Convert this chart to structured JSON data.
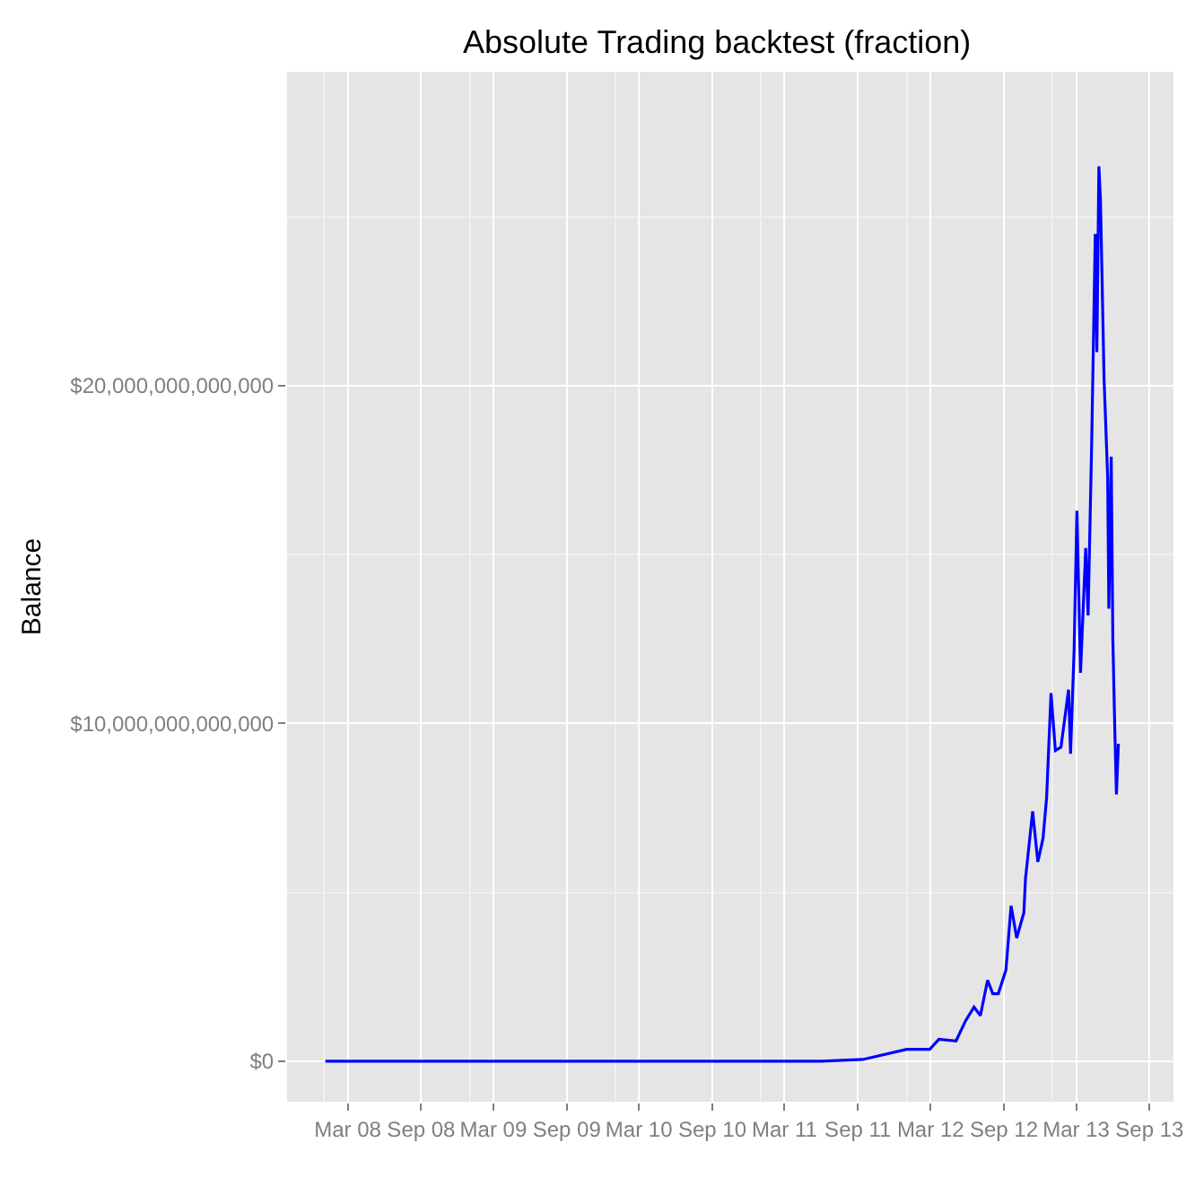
{
  "chart_data": {
    "type": "line",
    "title": "Absolute Trading backtest (fraction)",
    "ylabel": "Balance",
    "x": [
      "2008-01-05",
      "2009-06-01",
      "2011-06-01",
      "2011-09-13",
      "2012-01-01",
      "2012-02-28",
      "2012-03-22",
      "2012-05-04",
      "2012-05-28",
      "2012-06-18",
      "2012-07-04",
      "2012-07-22",
      "2012-08-04",
      "2012-08-18",
      "2012-09-06",
      "2012-09-19",
      "2012-10-03",
      "2012-10-21",
      "2012-10-25",
      "2012-11-03",
      "2012-11-12",
      "2012-11-25",
      "2012-12-08",
      "2012-12-17",
      "2012-12-28",
      "2013-01-08",
      "2013-01-22",
      "2013-02-10",
      "2013-02-15",
      "2013-02-24",
      "2013-03-03",
      "2013-03-12",
      "2013-03-25",
      "2013-03-31",
      "2013-04-09",
      "2013-04-18",
      "2013-04-22",
      "2013-04-27",
      "2013-05-01",
      "2013-05-10",
      "2013-05-19",
      "2013-05-22",
      "2013-05-28",
      "2013-06-01",
      "2013-06-06",
      "2013-06-10",
      "2013-06-15"
    ],
    "series": [
      {
        "color": "#0000ff",
        "values": [
          0,
          0,
          0,
          50000000000.0,
          350000000000.0,
          350000000000.0,
          650000000000.0,
          600000000000.0,
          1200000000000.0,
          1600000000000.0,
          1350000000000.0,
          2400000000000.0,
          2000000000000.0,
          2000000000000.0,
          2700000000000.0,
          4600000000000.0,
          3650000000000.0,
          4400000000000.0,
          5400000000000.0,
          6400000000000.0,
          7400000000000.0,
          5900000000000.0,
          6600000000000.0,
          7800000000000.0,
          10900000000000.0,
          9200000000000.0,
          9300000000000.0,
          11000000000000.0,
          9100000000000.0,
          12200000000000.0,
          16300000000000.0,
          11500000000000.0,
          15200000000000.0,
          13200000000000.0,
          18300000000000.0,
          24500000000000.0,
          21000000000000.0,
          26500000000000.0,
          25500000000000.0,
          20200000000000.0,
          17300000000000.0,
          13400000000000.0,
          17900000000000.0,
          12500000000000.0,
          9800000000000.0,
          7900000000000.0,
          9400000000000.0
        ]
      }
    ],
    "xlim": [
      "2007-10-01",
      "2013-10-31"
    ],
    "xticks": [
      {
        "value": "2008-03-01",
        "label": "Mar 08"
      },
      {
        "value": "2008-09-01",
        "label": "Sep 08"
      },
      {
        "value": "2009-03-01",
        "label": "Mar 09"
      },
      {
        "value": "2009-09-01",
        "label": "Sep 09"
      },
      {
        "value": "2010-03-01",
        "label": "Mar 10"
      },
      {
        "value": "2010-09-01",
        "label": "Sep 10"
      },
      {
        "value": "2011-03-01",
        "label": "Mar 11"
      },
      {
        "value": "2011-09-01",
        "label": "Sep 11"
      },
      {
        "value": "2012-03-01",
        "label": "Mar 12"
      },
      {
        "value": "2012-09-01",
        "label": "Sep 12"
      },
      {
        "value": "2013-03-01",
        "label": "Mar 13"
      },
      {
        "value": "2013-09-01",
        "label": "Sep 13"
      }
    ],
    "ylim": [
      -1200000000000.0,
      29300000000000.0
    ],
    "yticks": [
      {
        "value": 0,
        "label": "$0"
      },
      {
        "value": 10000000000000.0,
        "label": "$10,000,000,000,000"
      },
      {
        "value": 20000000000000.0,
        "label": "$20,000,000,000,000"
      }
    ],
    "grid": true,
    "marker": "none",
    "line_style": "solid"
  }
}
